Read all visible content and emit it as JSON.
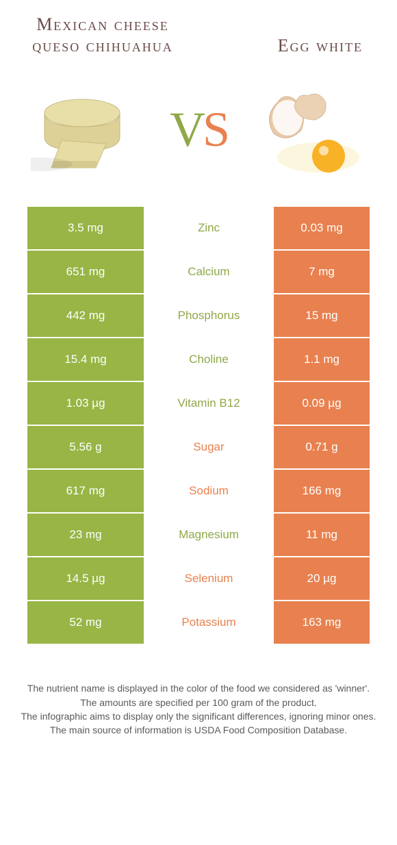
{
  "colors": {
    "left_bg": "#98b545",
    "right_bg": "#e8814f",
    "left_text": "#8fa848",
    "right_text": "#e8814f",
    "title": "#6a4a48"
  },
  "food_left": {
    "title": "Mexican cheese queso chihuahua"
  },
  "food_right": {
    "title": "Egg white"
  },
  "vs": {
    "v": "V",
    "s": "S"
  },
  "rows": [
    {
      "left": "3.5 mg",
      "label": "Zinc",
      "right": "0.03 mg",
      "winner": "left"
    },
    {
      "left": "651 mg",
      "label": "Calcium",
      "right": "7 mg",
      "winner": "left"
    },
    {
      "left": "442 mg",
      "label": "Phosphorus",
      "right": "15 mg",
      "winner": "left"
    },
    {
      "left": "15.4 mg",
      "label": "Choline",
      "right": "1.1 mg",
      "winner": "left"
    },
    {
      "left": "1.03 µg",
      "label": "Vitamin B12",
      "right": "0.09 µg",
      "winner": "left"
    },
    {
      "left": "5.56 g",
      "label": "Sugar",
      "right": "0.71 g",
      "winner": "right"
    },
    {
      "left": "617 mg",
      "label": "Sodium",
      "right": "166 mg",
      "winner": "right"
    },
    {
      "left": "23 mg",
      "label": "Magnesium",
      "right": "11 mg",
      "winner": "left"
    },
    {
      "left": "14.5 µg",
      "label": "Selenium",
      "right": "20 µg",
      "winner": "right"
    },
    {
      "left": "52 mg",
      "label": "Potassium",
      "right": "163 mg",
      "winner": "right"
    }
  ],
  "footer": {
    "l1": "The nutrient name is displayed in the color of the food we considered as 'winner'.",
    "l2": "The amounts are specified per 100 gram of the product.",
    "l3": "The infographic aims to display only the significant differences, ignoring minor ones.",
    "l4": "The main source of information is USDA Food Composition Database."
  }
}
